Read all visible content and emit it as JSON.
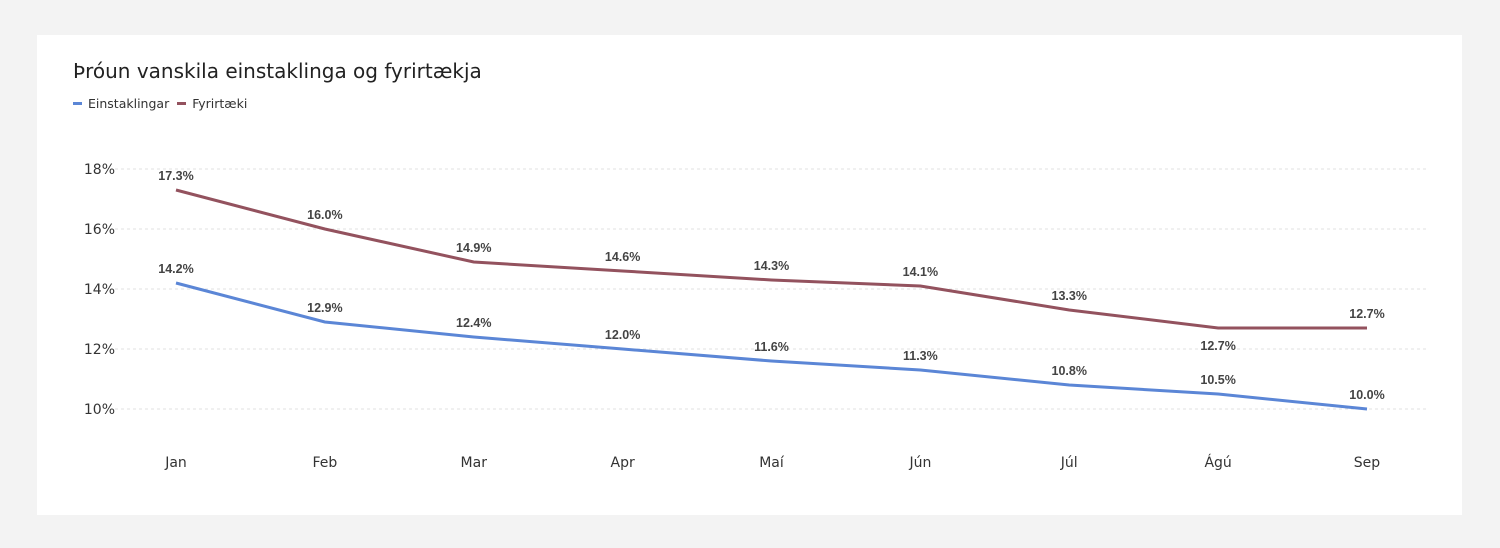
{
  "chart_data": {
    "type": "line",
    "title": "Þróun vanskila einstaklinga og fyrirtækja",
    "categories": [
      "Jan",
      "Feb",
      "Mar",
      "Apr",
      "Maí",
      "Jún",
      "Júl",
      "Ágú",
      "Sep"
    ],
    "series": [
      {
        "name": "Einstaklingar",
        "color": "#5b86d6",
        "values": [
          14.2,
          12.9,
          12.4,
          12.0,
          11.6,
          11.3,
          10.8,
          10.5,
          10.0
        ],
        "labels": [
          "14.2%",
          "12.9%",
          "12.4%",
          "12.0%",
          "11.6%",
          "11.3%",
          "10.8%",
          "10.5%",
          "10.0%"
        ]
      },
      {
        "name": "Fyrirtæki",
        "color": "#93525e",
        "values": [
          17.3,
          16.0,
          14.9,
          14.6,
          14.3,
          14.1,
          13.3,
          12.7,
          12.7
        ],
        "labels": [
          "17.3%",
          "16.0%",
          "14.9%",
          "14.6%",
          "14.3%",
          "14.1%",
          "13.3%",
          "12.7%",
          "12.7%"
        ]
      }
    ],
    "yticks": [
      10,
      12,
      14,
      16,
      18
    ],
    "ytick_labels": [
      "10%",
      "12%",
      "14%",
      "16%",
      "18%"
    ],
    "ylim": [
      10,
      18
    ],
    "xlabel": "",
    "ylabel": "",
    "grid": true,
    "legend_position": "top-left"
  }
}
